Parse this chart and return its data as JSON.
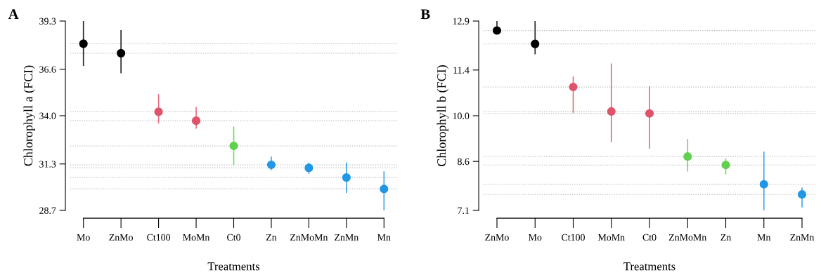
{
  "chart_data": [
    {
      "type": "scatter",
      "title": "A",
      "xlabel": "Treatments",
      "ylabel": "Chlorophyll a (FCI)",
      "categories": [
        "Mo",
        "ZnMo",
        "Ct100",
        "MoMn",
        "Ct0",
        "Zn",
        "ZnMoMn",
        "ZnMn",
        "Mn"
      ],
      "values": [
        38.03,
        37.5,
        34.22,
        33.72,
        32.31,
        31.25,
        31.08,
        30.54,
        29.9
      ],
      "errors": [
        [
          36.78,
          39.3
        ],
        [
          36.38,
          38.79
        ],
        [
          33.57,
          35.21
        ],
        [
          33.27,
          34.49
        ],
        [
          31.23,
          33.39
        ],
        [
          30.95,
          31.71
        ],
        [
          30.75,
          31.37
        ],
        [
          29.68,
          31.39
        ],
        [
          28.7,
          30.89
        ]
      ],
      "colors": [
        "#000000",
        "#000000",
        "#df536b",
        "#df536b",
        "#61d04f",
        "#2297e6",
        "#2297e6",
        "#2297e6",
        "#2297e6"
      ],
      "marker": "circle",
      "ylim": [
        28.7,
        39.3
      ],
      "yticks": [
        28.7,
        31.3,
        {
          "value": 34.0,
          "label": "34.0"
        },
        36.6,
        39.3
      ],
      "ref_lines": [
        {
          "axis": "y",
          "value": 38.03,
          "color": "#bbbbbb",
          "line_style": "dotted"
        },
        {
          "axis": "y",
          "value": 37.5,
          "color": "#bbbbbb",
          "line_style": "dotted"
        },
        {
          "axis": "y",
          "value": 34.22,
          "color": "#bbbbbb",
          "line_style": "dotted"
        },
        {
          "axis": "y",
          "value": 33.72,
          "color": "#bbbbbb",
          "line_style": "dotted"
        },
        {
          "axis": "y",
          "value": 32.31,
          "color": "#bbbbbb",
          "line_style": "dotted"
        },
        {
          "axis": "y",
          "value": 31.25,
          "color": "#bbbbbb",
          "line_style": "dotted"
        },
        {
          "axis": "y",
          "value": 31.08,
          "color": "#bbbbbb",
          "line_style": "dotted"
        },
        {
          "axis": "y",
          "value": 30.54,
          "color": "#bbbbbb",
          "line_style": "dotted"
        },
        {
          "axis": "y",
          "value": 29.9,
          "color": "#bbbbbb",
          "line_style": "dotted"
        }
      ],
      "grid": false,
      "legend": false
    },
    {
      "type": "scatter",
      "title": "B",
      "xlabel": "Treatments",
      "ylabel": "Chlorophyll b (FCI)",
      "categories": [
        "ZnMo",
        "Mo",
        "Ct100",
        "MoMn",
        "Ct0",
        "ZnMoMn",
        "Zn",
        "Mn",
        "ZnMn"
      ],
      "values": [
        12.61,
        12.2,
        10.88,
        10.13,
        10.07,
        8.75,
        8.49,
        7.9,
        7.59
      ],
      "errors": [
        [
          12.51,
          12.9
        ],
        [
          11.88,
          12.9
        ],
        [
          10.09,
          11.2
        ],
        [
          9.19,
          11.6
        ],
        [
          8.99,
          10.9
        ],
        [
          8.29,
          9.29
        ],
        [
          8.2,
          8.69
        ],
        [
          7.1,
          8.9
        ],
        [
          7.19,
          7.8
        ]
      ],
      "colors": [
        "#000000",
        "#000000",
        "#df536b",
        "#df536b",
        "#df536b",
        "#61d04f",
        "#61d04f",
        "#2297e6",
        "#2297e6"
      ],
      "marker": "circle",
      "ylim": [
        7.1,
        12.9
      ],
      "yticks": [
        7.1,
        8.6,
        {
          "value": 10.0,
          "label": "10.0"
        },
        11.4,
        12.9
      ],
      "ref_lines": [
        {
          "axis": "y",
          "value": 12.61,
          "color": "#bbbbbb",
          "line_style": "dotted"
        },
        {
          "axis": "y",
          "value": 12.2,
          "color": "#bbbbbb",
          "line_style": "dotted"
        },
        {
          "axis": "y",
          "value": 10.88,
          "color": "#bbbbbb",
          "line_style": "dotted"
        },
        {
          "axis": "y",
          "value": 10.13,
          "color": "#bbbbbb",
          "line_style": "dotted"
        },
        {
          "axis": "y",
          "value": 10.07,
          "color": "#bbbbbb",
          "line_style": "dotted"
        },
        {
          "axis": "y",
          "value": 8.75,
          "color": "#bbbbbb",
          "line_style": "dotted"
        },
        {
          "axis": "y",
          "value": 8.49,
          "color": "#bbbbbb",
          "line_style": "dotted"
        },
        {
          "axis": "y",
          "value": 7.9,
          "color": "#bbbbbb",
          "line_style": "dotted"
        },
        {
          "axis": "y",
          "value": 7.59,
          "color": "#bbbbbb",
          "line_style": "dotted"
        }
      ],
      "grid": false,
      "legend": false
    }
  ]
}
